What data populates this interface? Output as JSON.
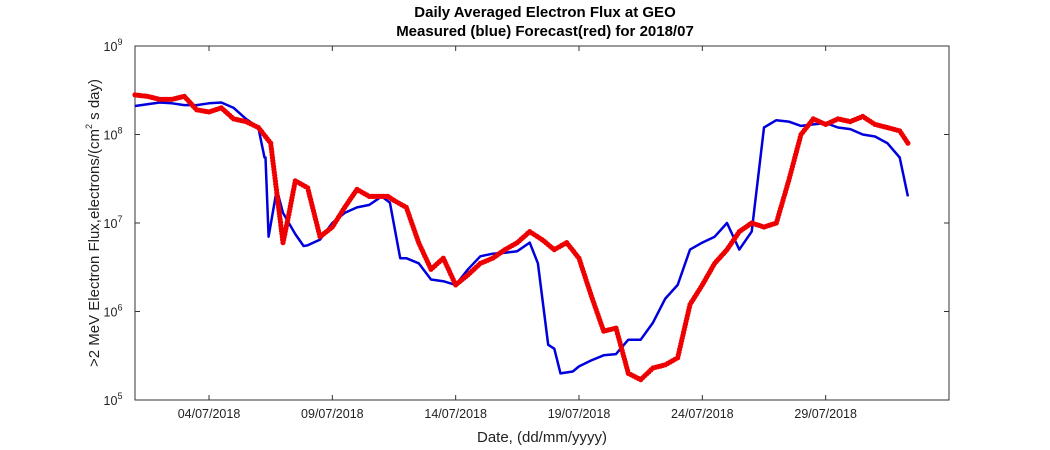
{
  "chart_data": {
    "type": "line",
    "title": "Daily Averaged Electron Flux at GEO",
    "subtitle": "Measured (blue) Forecast(red) for 2018/07",
    "xlabel": "Date, (dd/mm/yyyy)",
    "ylabel": {
      "prefix": ">2 MeV Electron Flux,electrons/(cm",
      "superscript": "2",
      "suffix": " s day)"
    },
    "yscale": "log",
    "ylim": [
      100000,
      1000000000
    ],
    "xlim": [
      "2018-07-01",
      "2018-08-03"
    ],
    "grid": false,
    "xticks": [
      {
        "date": "2018-07-04",
        "label": "04/07/2018"
      },
      {
        "date": "2018-07-09",
        "label": "09/07/2018"
      },
      {
        "date": "2018-07-14",
        "label": "14/07/2018"
      },
      {
        "date": "2018-07-19",
        "label": "19/07/2018"
      },
      {
        "date": "2018-07-24",
        "label": "24/07/2018"
      },
      {
        "date": "2018-07-29",
        "label": "29/07/2018"
      }
    ],
    "yticks": [
      {
        "value": 100000,
        "base": "10",
        "exp": "5"
      },
      {
        "value": 1000000,
        "base": "10",
        "exp": "6"
      },
      {
        "value": 10000000,
        "base": "10",
        "exp": "7"
      },
      {
        "value": 100000000,
        "base": "10",
        "exp": "8"
      },
      {
        "value": 1000000000,
        "base": "10",
        "exp": "9"
      }
    ],
    "series": [
      {
        "color": "#0000dd",
        "style": "line",
        "x": [
          "2018-07-01 00:00",
          "2018-07-02 00:00",
          "2018-07-02 12:00",
          "2018-07-03 00:00",
          "2018-07-03 12:00",
          "2018-07-04 00:00",
          "2018-07-04 12:00",
          "2018-07-05 00:00",
          "2018-07-05 12:00",
          "2018-07-06 00:00",
          "2018-07-06 06:00",
          "2018-07-06 07:00",
          "2018-07-06 10:00",
          "2018-07-06 18:00",
          "2018-07-07 00:00",
          "2018-07-07 12:00",
          "2018-07-07 20:00",
          "2018-07-08 00:00",
          "2018-07-08 12:00",
          "2018-07-09 00:00",
          "2018-07-09 12:00",
          "2018-07-10 00:00",
          "2018-07-10 12:00",
          "2018-07-11 00:00",
          "2018-07-11 08:00",
          "2018-07-11 18:00",
          "2018-07-12 00:00",
          "2018-07-12 12:00",
          "2018-07-13 00:00",
          "2018-07-13 12:00",
          "2018-07-14 00:00",
          "2018-07-14 12:00",
          "2018-07-15 00:00",
          "2018-07-15 12:00",
          "2018-07-16 00:00",
          "2018-07-16 12:00",
          "2018-07-17 00:00",
          "2018-07-17 08:00",
          "2018-07-17 18:00",
          "2018-07-18 00:00",
          "2018-07-18 06:00",
          "2018-07-18 18:00",
          "2018-07-19 00:00",
          "2018-07-19 12:00",
          "2018-07-20 00:00",
          "2018-07-20 12:00",
          "2018-07-21 00:00",
          "2018-07-21 12:00",
          "2018-07-22 00:00",
          "2018-07-22 12:00",
          "2018-07-23 00:00",
          "2018-07-23 12:00",
          "2018-07-24 00:00",
          "2018-07-24 12:00",
          "2018-07-25 00:00",
          "2018-07-25 12:00",
          "2018-07-26 00:00",
          "2018-07-26 12:00",
          "2018-07-27 00:00",
          "2018-07-27 12:00",
          "2018-07-28 00:00",
          "2018-07-28 12:00",
          "2018-07-29 00:00",
          "2018-07-29 12:00",
          "2018-07-30 00:00",
          "2018-07-30 12:00",
          "2018-07-31 00:00",
          "2018-07-31 12:00",
          "2018-08-01 00:00",
          "2018-08-01 08:00"
        ],
        "y": [
          210000000,
          230000000,
          225000000,
          215000000,
          215000000,
          225000000,
          230000000,
          200000000,
          150000000,
          120000000,
          55000000,
          55000000,
          7000000,
          24000000,
          13000000,
          7500000,
          5500000,
          5600000,
          6500000,
          10000000,
          13000000,
          15000000,
          16000000,
          20000000,
          17000000,
          4000000,
          4000000,
          3500000,
          2300000,
          2200000,
          2000000,
          3000000,
          4200000,
          4500000,
          4600000,
          4800000,
          6000000,
          3500000,
          420000,
          380000,
          200000,
          210000,
          240000,
          280000,
          320000,
          330000,
          480000,
          480000,
          750000,
          1400000,
          2000000,
          5000000,
          6000000,
          7000000,
          10000000,
          5000000,
          8000000,
          120000000,
          145000000,
          140000000,
          125000000,
          130000000,
          135000000,
          120000000,
          115000000,
          100000000,
          95000000,
          80000000,
          55000000,
          20000000
        ]
      },
      {
        "color": "#ee0000",
        "style": "markers",
        "x": [
          "2018-07-01 00:00",
          "2018-07-01 12:00",
          "2018-07-02 00:00",
          "2018-07-02 12:00",
          "2018-07-03 00:00",
          "2018-07-03 12:00",
          "2018-07-04 00:00",
          "2018-07-04 12:00",
          "2018-07-05 00:00",
          "2018-07-05 12:00",
          "2018-07-06 00:00",
          "2018-07-06 12:00",
          "2018-07-07 00:00",
          "2018-07-07 04:00",
          "2018-07-07 12:00",
          "2018-07-08 00:00",
          "2018-07-08 12:00",
          "2018-07-09 00:00",
          "2018-07-09 12:00",
          "2018-07-10 00:00",
          "2018-07-10 12:00",
          "2018-07-11 00:00",
          "2018-07-11 06:00",
          "2018-07-11 12:00",
          "2018-07-12 00:00",
          "2018-07-12 12:00",
          "2018-07-13 00:00",
          "2018-07-13 12:00",
          "2018-07-14 00:00",
          "2018-07-14 12:00",
          "2018-07-15 00:00",
          "2018-07-15 12:00",
          "2018-07-16 00:00",
          "2018-07-16 12:00",
          "2018-07-17 00:00",
          "2018-07-17 12:00",
          "2018-07-18 00:00",
          "2018-07-18 12:00",
          "2018-07-19 00:00",
          "2018-07-19 12:00",
          "2018-07-20 00:00",
          "2018-07-20 12:00",
          "2018-07-21 00:00",
          "2018-07-21 12:00",
          "2018-07-22 00:00",
          "2018-07-22 12:00",
          "2018-07-23 00:00",
          "2018-07-23 12:00",
          "2018-07-24 00:00",
          "2018-07-24 12:00",
          "2018-07-25 00:00",
          "2018-07-25 12:00",
          "2018-07-26 00:00",
          "2018-07-26 12:00",
          "2018-07-27 00:00",
          "2018-07-27 12:00",
          "2018-07-28 00:00",
          "2018-07-28 12:00",
          "2018-07-29 00:00",
          "2018-07-29 12:00",
          "2018-07-30 00:00",
          "2018-07-30 12:00",
          "2018-07-31 00:00",
          "2018-07-31 12:00",
          "2018-08-01 00:00",
          "2018-08-01 08:00"
        ],
        "y": [
          280000000,
          270000000,
          250000000,
          250000000,
          270000000,
          190000000,
          180000000,
          200000000,
          150000000,
          140000000,
          120000000,
          80000000,
          6000000,
          10000000,
          30000000,
          25000000,
          7000000,
          9000000,
          15000000,
          24000000,
          20000000,
          20000000,
          20000000,
          18000000,
          15000000,
          6000000,
          3000000,
          4000000,
          2000000,
          2600000,
          3500000,
          4000000,
          5000000,
          6000000,
          8000000,
          6500000,
          5000000,
          6000000,
          4000000,
          1500000,
          600000,
          650000,
          200000,
          170000,
          230000,
          250000,
          300000,
          1200000,
          2000000,
          3500000,
          5000000,
          8000000,
          10000000,
          9000000,
          10000000,
          30000000,
          100000000,
          150000000,
          130000000,
          150000000,
          140000000,
          160000000,
          130000000,
          120000000,
          110000000,
          80000000
        ]
      }
    ]
  }
}
